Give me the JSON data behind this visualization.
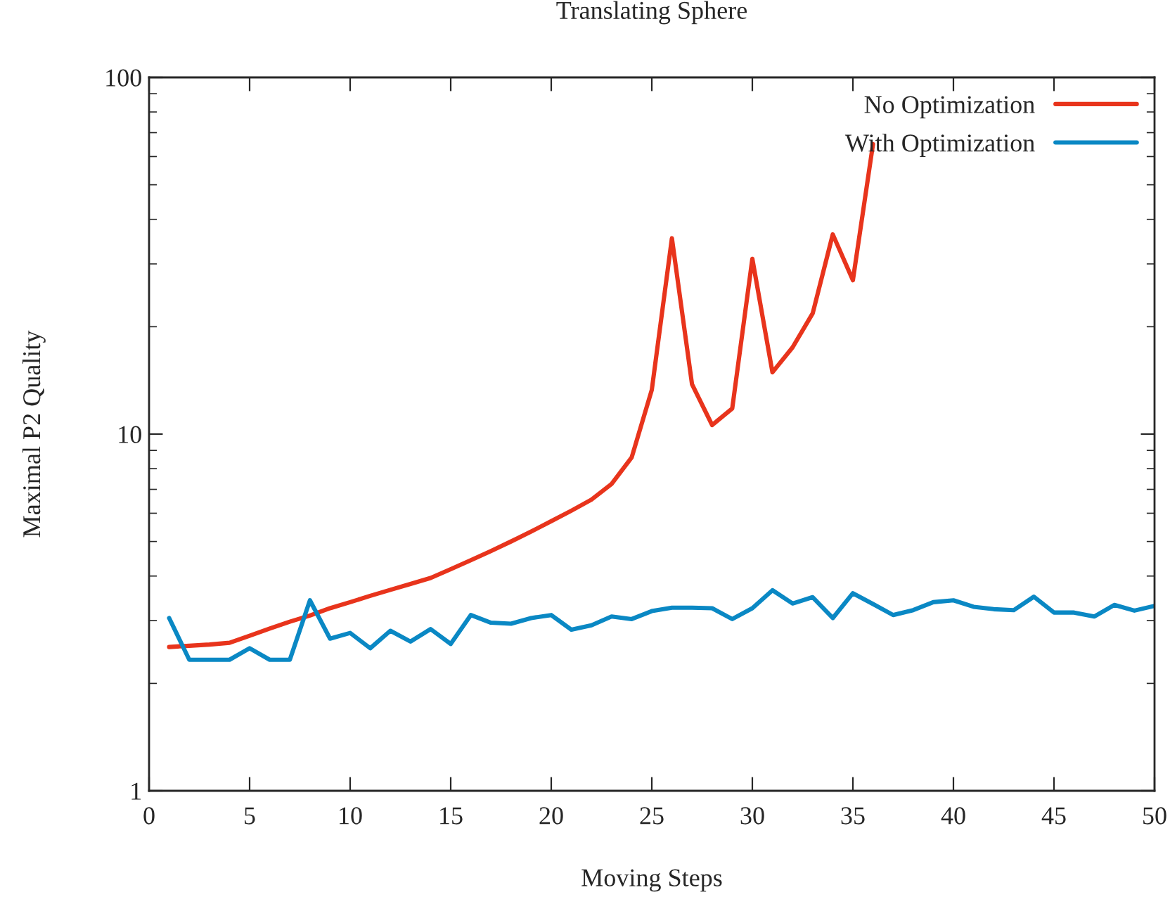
{
  "chart_data": {
    "type": "line",
    "title": "Translating Sphere",
    "xlabel": "Moving Steps",
    "ylabel": "Maximal P2 Quality",
    "x": [
      1,
      2,
      3,
      4,
      5,
      6,
      7,
      8,
      9,
      10,
      11,
      12,
      13,
      14,
      15,
      16,
      17,
      18,
      19,
      20,
      21,
      22,
      23,
      24,
      25,
      26,
      27,
      28,
      29,
      30,
      31,
      32,
      33,
      34,
      35,
      36,
      37,
      38,
      39,
      40,
      41,
      42,
      43,
      44,
      45,
      46,
      47,
      48,
      49,
      50
    ],
    "series": [
      {
        "name": "No Optimization",
        "color": "#e8341c",
        "values": [
          2.53,
          2.55,
          2.57,
          2.6,
          2.72,
          2.85,
          2.98,
          3.1,
          3.25,
          3.38,
          3.52,
          3.66,
          3.8,
          3.95,
          4.18,
          4.43,
          4.7,
          5.0,
          5.33,
          5.7,
          6.1,
          6.55,
          7.25,
          8.6,
          13.3,
          35.4,
          13.8,
          10.6,
          11.8,
          31,
          14.9,
          17.5,
          21.8,
          36.3,
          27,
          65,
          null,
          null,
          null,
          null,
          null,
          null,
          null,
          null,
          null,
          null,
          null,
          null,
          null,
          null
        ]
      },
      {
        "name": "With Optimization",
        "color": "#0a88c4",
        "values": [
          3.05,
          2.33,
          2.33,
          2.33,
          2.51,
          2.33,
          2.33,
          3.42,
          2.67,
          2.77,
          2.51,
          2.81,
          2.62,
          2.84,
          2.58,
          3.11,
          2.96,
          2.94,
          3.05,
          3.11,
          2.83,
          2.91,
          3.08,
          3.03,
          3.19,
          3.26,
          3.26,
          3.25,
          3.03,
          3.25,
          3.65,
          3.35,
          3.49,
          3.05,
          3.58,
          3.34,
          3.11,
          3.21,
          3.38,
          3.42,
          3.28,
          3.23,
          3.21,
          3.5,
          3.16,
          3.16,
          3.08,
          3.32,
          3.2,
          3.3
        ]
      }
    ],
    "log": "y",
    "xlim": [
      0,
      50
    ],
    "ylim": [
      1,
      100
    ],
    "xticks": [
      0,
      5,
      10,
      15,
      20,
      25,
      30,
      35,
      40,
      45,
      50
    ],
    "yticks": [
      1,
      10,
      100
    ],
    "grid": false,
    "legend": "top right",
    "marker": "none",
    "line_style": "solid"
  }
}
